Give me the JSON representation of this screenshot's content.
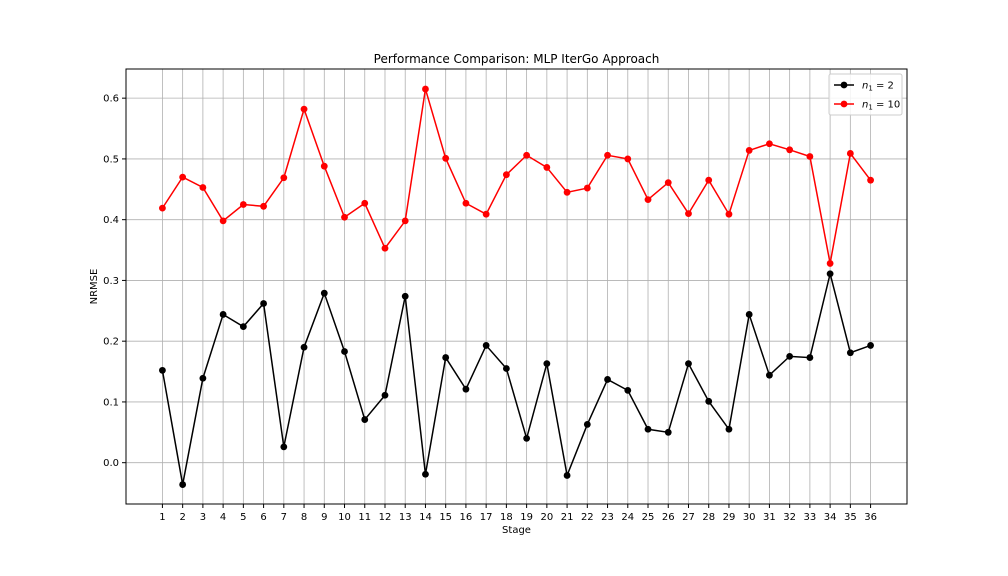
{
  "chart_data": {
    "type": "line",
    "title": "Performance Comparison: MLP IterGo Approach",
    "xlabel": "Stage",
    "ylabel": "NRMSE",
    "x": [
      1,
      2,
      3,
      4,
      5,
      6,
      7,
      8,
      9,
      10,
      11,
      12,
      13,
      14,
      15,
      16,
      17,
      18,
      19,
      20,
      21,
      22,
      23,
      24,
      25,
      26,
      27,
      28,
      29,
      30,
      31,
      32,
      33,
      34,
      35,
      36
    ],
    "xlim": [
      -0.8,
      37.8
    ],
    "ylim": [
      -0.068,
      0.648
    ],
    "yticks": [
      0.0,
      0.1,
      0.2,
      0.3,
      0.4,
      0.5,
      0.6
    ],
    "ytick_labels": [
      "0.0",
      "0.1",
      "0.2",
      "0.3",
      "0.4",
      "0.5",
      "0.6"
    ],
    "grid": true,
    "legend_position": "top-right",
    "series": [
      {
        "name": "n₁ = 2",
        "legend_base": "n",
        "legend_sub": "1",
        "legend_rest": " = 2",
        "color": "#000000",
        "marker": "circle",
        "values": [
          0.152,
          -0.036,
          0.139,
          0.244,
          0.224,
          0.262,
          0.026,
          0.19,
          0.279,
          0.183,
          0.071,
          0.111,
          0.274,
          -0.019,
          0.173,
          0.121,
          0.193,
          0.155,
          0.04,
          0.163,
          -0.021,
          0.063,
          0.137,
          0.119,
          0.055,
          0.05,
          0.163,
          0.101,
          0.055,
          0.244,
          0.144,
          0.175,
          0.173,
          0.311,
          0.181,
          0.193
        ]
      },
      {
        "name": "n₁ = 10",
        "legend_base": "n",
        "legend_sub": "1",
        "legend_rest": " = 10",
        "color": "#ff0000",
        "marker": "circle",
        "values": [
          0.419,
          0.47,
          0.453,
          0.398,
          0.425,
          0.422,
          0.469,
          0.582,
          0.488,
          0.404,
          0.427,
          0.353,
          0.398,
          0.615,
          0.501,
          0.427,
          0.409,
          0.474,
          0.506,
          0.486,
          0.445,
          0.452,
          0.506,
          0.5,
          0.433,
          0.461,
          0.41,
          0.465,
          0.409,
          0.514,
          0.525,
          0.515,
          0.504,
          0.328,
          0.509,
          0.465
        ]
      }
    ]
  }
}
